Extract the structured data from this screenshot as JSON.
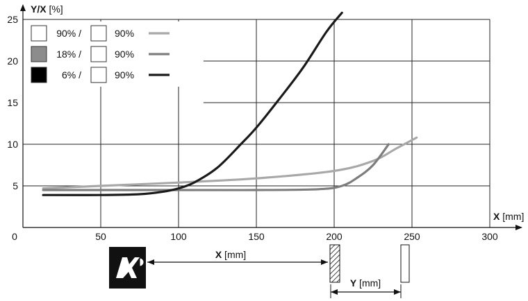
{
  "chart_data": {
    "type": "line",
    "title": "",
    "xlabel": "X [mm]",
    "ylabel": "Y/X [%]",
    "xlim": [
      0,
      300
    ],
    "ylim": [
      0,
      25
    ],
    "x_ticks": [
      "0",
      "50",
      "100",
      "150",
      "200",
      "250",
      "300"
    ],
    "y_ticks": [
      "5",
      "10",
      "15",
      "20",
      "25"
    ],
    "grid": true,
    "legend_position": "top-left",
    "series": [
      {
        "swatch_a": "90%",
        "separator": "/",
        "swatch_b": "90%",
        "color": "#a8a8a8",
        "points": [
          [
            13,
            4.7
          ],
          [
            50,
            5.0
          ],
          [
            100,
            5.4
          ],
          [
            150,
            5.9
          ],
          [
            200,
            6.8
          ],
          [
            225,
            8.0
          ],
          [
            240,
            9.5
          ],
          [
            253,
            10.8
          ]
        ]
      },
      {
        "swatch_a": "18%",
        "separator": "/",
        "swatch_b": "90%",
        "color": "#7d7d7d",
        "points": [
          [
            13,
            4.5
          ],
          [
            100,
            4.5
          ],
          [
            150,
            4.5
          ],
          [
            190,
            4.6
          ],
          [
            205,
            5.0
          ],
          [
            215,
            6.0
          ],
          [
            225,
            7.5
          ],
          [
            235,
            10.0
          ]
        ]
      },
      {
        "swatch_a": "6%",
        "separator": "/",
        "swatch_b": "90%",
        "color": "#1a1a1a",
        "points": [
          [
            13,
            3.9
          ],
          [
            50,
            3.9
          ],
          [
            75,
            4.0
          ],
          [
            90,
            4.3
          ],
          [
            100,
            4.7
          ],
          [
            110,
            5.4
          ],
          [
            125,
            7.2
          ],
          [
            140,
            10.0
          ],
          [
            150,
            12.0
          ],
          [
            165,
            15.5
          ],
          [
            180,
            19.2
          ],
          [
            195,
            23.5
          ],
          [
            205,
            25.8
          ]
        ]
      }
    ],
    "legend_swatch_colors": {
      "90%": "#ffffff",
      "18%": "#8c8c8c",
      "6%": "#000000"
    }
  },
  "diagram": {
    "x_label": "X [mm]",
    "y_label": "Y [mm]",
    "sensor_icon": "sensor-logo-icon",
    "target_icon": "hatched-target-icon",
    "background_icon": "background-plate-icon"
  }
}
